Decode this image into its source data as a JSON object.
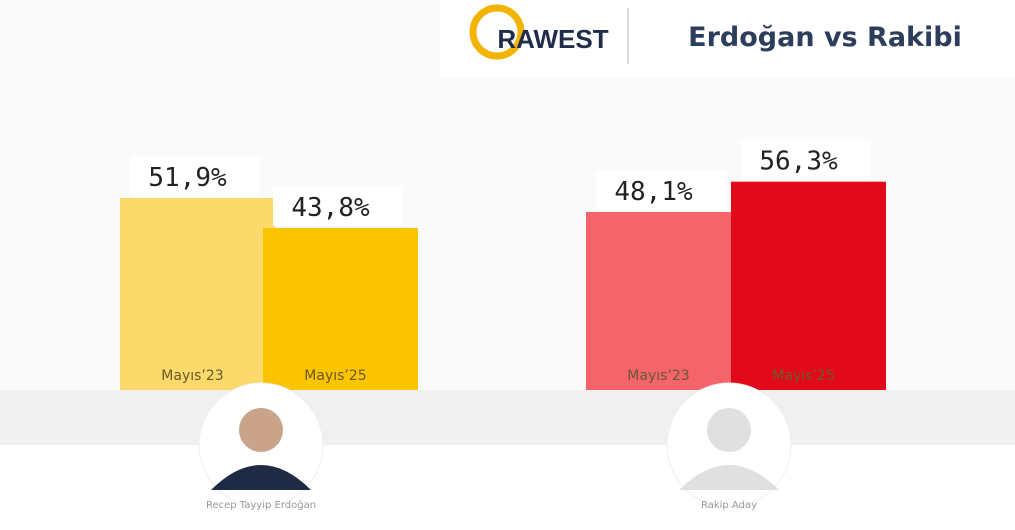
{
  "chart_data": {
    "type": "bar",
    "logo": "RAWEST",
    "title": "Erdoğan vs Rakibi",
    "groups": [
      {
        "name": "Recep Tayyip Erdoğan",
        "categories": [
          "Mayıs’23",
          "Mayıs’25"
        ],
        "values": [
          51.9,
          43.8
        ],
        "value_labels": [
          "51,9%",
          "43,8%"
        ],
        "colors": [
          "#fbd96a",
          "#fbc400"
        ]
      },
      {
        "name": "Rakip Aday",
        "categories": [
          "Mayıs’23",
          "Mayıs’25"
        ],
        "values": [
          48.1,
          56.3
        ],
        "value_labels": [
          "48,1%",
          "56,3%"
        ],
        "colors": [
          "#f5636b",
          "#e20a1a"
        ]
      }
    ]
  }
}
